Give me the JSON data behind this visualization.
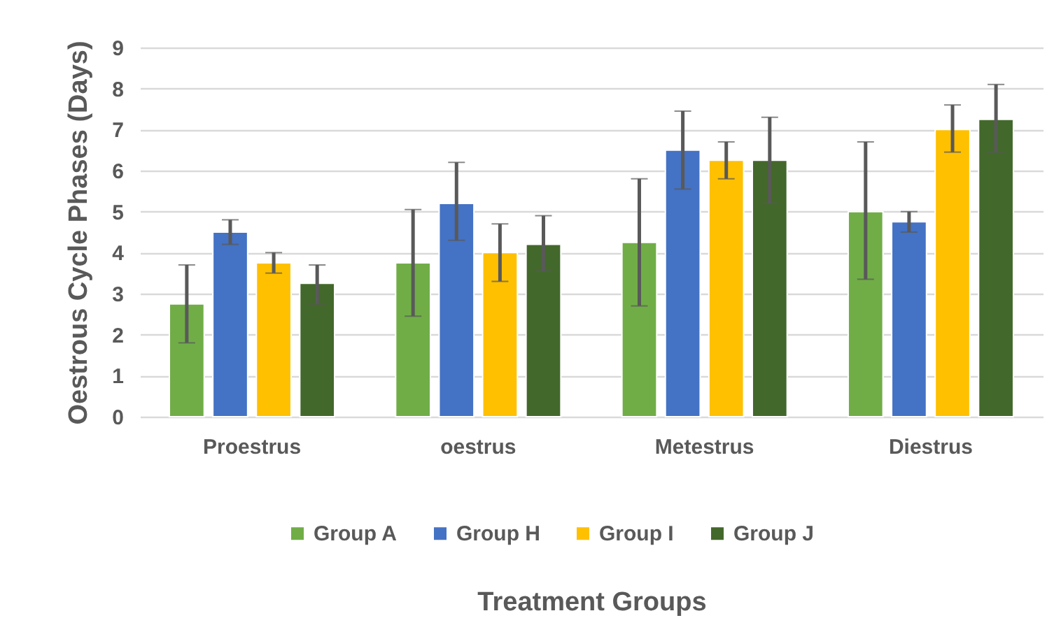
{
  "chart_data": {
    "type": "bar",
    "xlabel": "Treatment Groups",
    "ylabel": "Oestrous Cycle Phases  (Days)",
    "categories": [
      "Proestrus",
      "oestrus",
      "Metestrus",
      "Diestrus"
    ],
    "series": [
      {
        "name": "Group A",
        "color": "#70ad47",
        "values": [
          2.75,
          3.75,
          4.25,
          5.0
        ],
        "errors": [
          [
            1.8,
            3.7
          ],
          [
            2.45,
            5.05
          ],
          [
            2.7,
            5.8
          ],
          [
            3.35,
            6.7
          ]
        ]
      },
      {
        "name": "Group H",
        "color": "#4472c4",
        "values": [
          4.5,
          5.2,
          6.5,
          4.75
        ],
        "errors": [
          [
            4.2,
            4.8
          ],
          [
            4.3,
            6.2
          ],
          [
            5.55,
            7.45
          ],
          [
            4.5,
            5.0
          ]
        ]
      },
      {
        "name": "Group I",
        "color": "#ffc000",
        "values": [
          3.75,
          4.0,
          6.25,
          7.0
        ],
        "errors": [
          [
            3.5,
            4.0
          ],
          [
            3.3,
            4.7
          ],
          [
            5.8,
            6.7
          ],
          [
            6.45,
            7.6
          ]
        ]
      },
      {
        "name": "Group J",
        "color": "#43682b",
        "values": [
          3.25,
          4.2,
          6.25,
          7.25
        ],
        "errors": [
          [
            2.75,
            3.7
          ],
          [
            3.55,
            4.9
          ],
          [
            5.2,
            7.3
          ],
          [
            6.45,
            8.1
          ]
        ]
      }
    ],
    "ylim": [
      0,
      9
    ],
    "yticks": [
      0,
      1,
      2,
      3,
      4,
      5,
      6,
      7,
      8,
      9
    ],
    "grid": "y",
    "legend": "bottom"
  }
}
